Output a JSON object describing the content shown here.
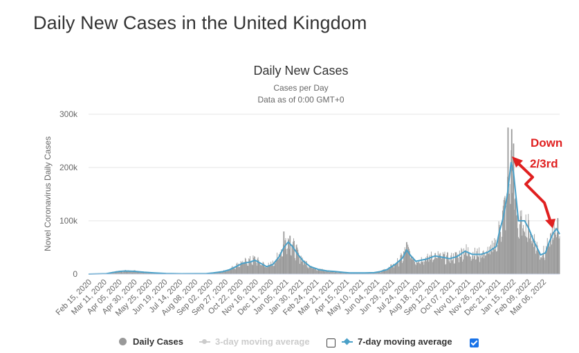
{
  "page": {
    "title": "Daily New Cases in the United Kingdom"
  },
  "colors": {
    "daily_bars": "#999999",
    "moving_avg_line": "#4aa0c8",
    "three_day_avg": "#cccccc",
    "annotation": "#e02020",
    "checkbox_checked": "#1a73e8"
  },
  "chart_data": {
    "type": "bar",
    "title": "Daily New Cases",
    "subtitle_1": "Cases per Day",
    "subtitle_2": "Data as of 0:00 GMT+0",
    "ylabel": "Novel Coronavirus Daily Cases",
    "ylim": [
      0,
      300000
    ],
    "y_ticks": [
      0,
      100000,
      200000,
      300000
    ],
    "y_tick_labels": [
      "0",
      "100k",
      "200k",
      "300k"
    ],
    "x_range": [
      "2020-02-15",
      "2022-03-23"
    ],
    "x_tick_labels": [
      "Feb 15, 2020",
      "Mar 11, 2020",
      "Apr 05, 2020",
      "Apr 30, 2020",
      "May 25, 2020",
      "Jun 19, 2020",
      "Jul 14, 2020",
      "Aug 08, 2020",
      "Sep 02, 2020",
      "Sep 27, 2020",
      "Oct 22, 2020",
      "Nov 16, 2020",
      "Dec 11, 2020",
      "Jan 05, 2021",
      "Jan 30, 2021",
      "Feb 24, 2021",
      "Mar 21, 2021",
      "Apr 15, 2021",
      "May 10, 2021",
      "Jun 04, 2021",
      "Jun 29, 2021",
      "Jul 24, 2021",
      "Aug 18, 2021",
      "Sep 12, 2021",
      "Oct 07, 2021",
      "Nov 01, 2021",
      "Nov 26, 2021",
      "Dec 21, 2021",
      "Jan 15, 2022",
      "Feb 09, 2022",
      "Mar 06, 2022"
    ],
    "series": [
      {
        "name": "Daily Cases",
        "kind": "bar",
        "points": [
          [
            "2020-02-15",
            0
          ],
          [
            "2020-03-15",
            1000
          ],
          [
            "2020-03-25",
            3500
          ],
          [
            "2020-04-05",
            5500
          ],
          [
            "2020-04-15",
            6000
          ],
          [
            "2020-04-30",
            5500
          ],
          [
            "2020-05-15",
            3800
          ],
          [
            "2020-06-01",
            2500
          ],
          [
            "2020-06-20",
            1300
          ],
          [
            "2020-07-15",
            700
          ],
          [
            "2020-08-08",
            850
          ],
          [
            "2020-08-25",
            1200
          ],
          [
            "2020-09-05",
            2500
          ],
          [
            "2020-09-20",
            5000
          ],
          [
            "2020-10-01",
            9000
          ],
          [
            "2020-10-12",
            16000
          ],
          [
            "2020-10-22",
            22000
          ],
          [
            "2020-11-05",
            26000
          ],
          [
            "2020-11-12",
            28000
          ],
          [
            "2020-11-20",
            22000
          ],
          [
            "2020-12-01",
            15000
          ],
          [
            "2020-12-11",
            20000
          ],
          [
            "2020-12-21",
            35000
          ],
          [
            "2020-12-29",
            55000
          ],
          [
            "2021-01-05",
            65000
          ],
          [
            "2021-01-12",
            55000
          ],
          [
            "2021-01-20",
            40000
          ],
          [
            "2021-01-30",
            25000
          ],
          [
            "2021-02-10",
            15000
          ],
          [
            "2021-02-24",
            9000
          ],
          [
            "2021-03-10",
            6000
          ],
          [
            "2021-03-21",
            5000
          ],
          [
            "2021-04-05",
            3500
          ],
          [
            "2021-04-15",
            2500
          ],
          [
            "2021-05-10",
            2300
          ],
          [
            "2021-05-25",
            2800
          ],
          [
            "2021-06-04",
            5000
          ],
          [
            "2021-06-15",
            9000
          ],
          [
            "2021-06-29",
            20000
          ],
          [
            "2021-07-10",
            32000
          ],
          [
            "2021-07-17",
            48000
          ],
          [
            "2021-07-24",
            36000
          ],
          [
            "2021-08-01",
            25000
          ],
          [
            "2021-08-18",
            30000
          ],
          [
            "2021-09-01",
            35000
          ],
          [
            "2021-09-12",
            33000
          ],
          [
            "2021-09-25",
            30000
          ],
          [
            "2021-10-07",
            34000
          ],
          [
            "2021-10-20",
            45000
          ],
          [
            "2021-11-01",
            38000
          ],
          [
            "2021-11-15",
            38000
          ],
          [
            "2021-11-26",
            42000
          ],
          [
            "2021-12-10",
            55000
          ],
          [
            "2021-12-15",
            85000
          ],
          [
            "2021-12-21",
            110000
          ],
          [
            "2021-12-28",
            150000
          ],
          [
            "2022-01-03",
            200000
          ],
          [
            "2022-01-07",
            175000
          ],
          [
            "2022-01-15",
            90000
          ],
          [
            "2022-01-25",
            95000
          ],
          [
            "2022-02-01",
            85000
          ],
          [
            "2022-02-09",
            65000
          ],
          [
            "2022-02-20",
            38000
          ],
          [
            "2022-02-28",
            42000
          ],
          [
            "2022-03-06",
            60000
          ],
          [
            "2022-03-13",
            78000
          ],
          [
            "2022-03-18",
            85000
          ],
          [
            "2022-03-23",
            75000
          ]
        ]
      },
      {
        "name": "3-day moving average",
        "kind": "line",
        "enabled": false
      },
      {
        "name": "7-day moving average",
        "kind": "line",
        "enabled": true,
        "points": [
          [
            "2020-02-15",
            0
          ],
          [
            "2020-03-15",
            800
          ],
          [
            "2020-03-25",
            3000
          ],
          [
            "2020-04-05",
            5000
          ],
          [
            "2020-04-15",
            5800
          ],
          [
            "2020-04-30",
            5200
          ],
          [
            "2020-05-15",
            3600
          ],
          [
            "2020-06-01",
            2300
          ],
          [
            "2020-06-20",
            1200
          ],
          [
            "2020-07-15",
            650
          ],
          [
            "2020-08-08",
            800
          ],
          [
            "2020-08-25",
            1100
          ],
          [
            "2020-09-05",
            2300
          ],
          [
            "2020-09-20",
            4500
          ],
          [
            "2020-10-01",
            8000
          ],
          [
            "2020-10-12",
            14000
          ],
          [
            "2020-10-22",
            20000
          ],
          [
            "2020-11-05",
            23000
          ],
          [
            "2020-11-12",
            26000
          ],
          [
            "2020-11-20",
            21000
          ],
          [
            "2020-12-01",
            14000
          ],
          [
            "2020-12-11",
            18000
          ],
          [
            "2020-12-21",
            32000
          ],
          [
            "2020-12-29",
            50000
          ],
          [
            "2021-01-05",
            60000
          ],
          [
            "2021-01-12",
            52000
          ],
          [
            "2021-01-20",
            38000
          ],
          [
            "2021-01-30",
            24000
          ],
          [
            "2021-02-10",
            14000
          ],
          [
            "2021-02-24",
            8500
          ],
          [
            "2021-03-10",
            5800
          ],
          [
            "2021-03-21",
            5000
          ],
          [
            "2021-04-05",
            3300
          ],
          [
            "2021-04-15",
            2400
          ],
          [
            "2021-05-10",
            2200
          ],
          [
            "2021-05-25",
            2700
          ],
          [
            "2021-06-04",
            4800
          ],
          [
            "2021-06-15",
            8500
          ],
          [
            "2021-06-29",
            19000
          ],
          [
            "2021-07-10",
            30000
          ],
          [
            "2021-07-17",
            45000
          ],
          [
            "2021-07-24",
            34000
          ],
          [
            "2021-08-01",
            24000
          ],
          [
            "2021-08-18",
            28000
          ],
          [
            "2021-09-01",
            34000
          ],
          [
            "2021-09-12",
            32000
          ],
          [
            "2021-09-25",
            29000
          ],
          [
            "2021-10-07",
            33000
          ],
          [
            "2021-10-20",
            43000
          ],
          [
            "2021-11-01",
            37000
          ],
          [
            "2021-11-15",
            37000
          ],
          [
            "2021-11-26",
            41000
          ],
          [
            "2021-12-10",
            52000
          ],
          [
            "2021-12-15",
            80000
          ],
          [
            "2021-12-21",
            105000
          ],
          [
            "2021-12-28",
            150000
          ],
          [
            "2022-01-03",
            210000
          ],
          [
            "2022-01-07",
            190000
          ],
          [
            "2022-01-15",
            100000
          ],
          [
            "2022-01-25",
            100000
          ],
          [
            "2022-02-01",
            85000
          ],
          [
            "2022-02-09",
            62000
          ],
          [
            "2022-02-20",
            36000
          ],
          [
            "2022-02-28",
            40000
          ],
          [
            "2022-03-06",
            60000
          ],
          [
            "2022-03-13",
            78000
          ],
          [
            "2022-03-18",
            85000
          ],
          [
            "2022-03-23",
            75000
          ]
        ]
      }
    ],
    "spikes": [
      [
        "2020-12-29",
        80000
      ],
      [
        "2021-01-08",
        72000
      ],
      [
        "2021-07-17",
        60000
      ],
      [
        "2021-12-29",
        275000
      ],
      [
        "2022-01-04",
        272000
      ],
      [
        "2022-01-07",
        245000
      ],
      [
        "2022-03-20",
        105000
      ]
    ],
    "annotation": {
      "text_line1": "Down",
      "text_line2": "2/3rd"
    },
    "legend": {
      "daily": "Daily Cases",
      "three_day": "3-day moving average",
      "seven_day": "7-day moving average"
    }
  }
}
